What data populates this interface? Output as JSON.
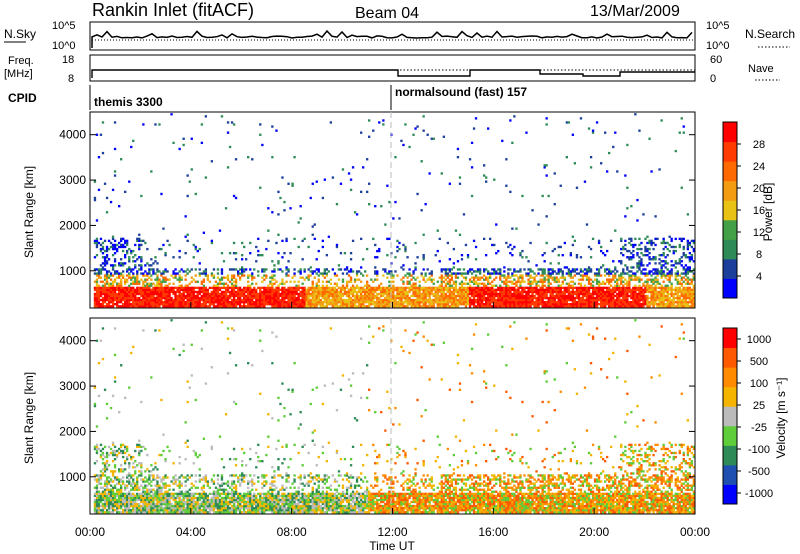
{
  "header": {
    "station": "Rankin Inlet (fitACF)",
    "beam": "Beam 04",
    "date": "13/Mar/2009"
  },
  "noise_panel": {
    "left_label": "N.Sky",
    "left_ticks": [
      "10^5",
      "10^0"
    ],
    "right_label": "N.Search",
    "right_ticks": [
      "10^5",
      "10^0"
    ]
  },
  "freq_panel": {
    "left_label_1": "Freq.",
    "left_label_2": "[MHz]",
    "left_ticks": [
      "18",
      "8"
    ],
    "right_label": "Nave",
    "right_ticks": [
      "60",
      "0"
    ]
  },
  "cpid_panel": {
    "label": "CPID",
    "segments": [
      {
        "name": "themis 3300",
        "start_hour": 0
      },
      {
        "name": "normalsound (fast) 157",
        "start_hour": 12
      }
    ]
  },
  "colors": {
    "power_scale": [
      "#0000ff",
      "#1c3f9c",
      "#2e8b57",
      "#43a047",
      "#e8c214",
      "#f39c12",
      "#ff6a00",
      "#ff3b00",
      "#ff0000"
    ],
    "velocity_scale": [
      "#ff0000",
      "#ff5a00",
      "#ff8c00",
      "#f4b400",
      "#bbbbbb",
      "#5fcc3a",
      "#2e8b57",
      "#1f4fb0",
      "#0000ff"
    ]
  },
  "chart_data": [
    {
      "type": "heatmap",
      "name": "power",
      "ylabel": "Slant Range [km]",
      "yticks": [
        "1000",
        "2000",
        "3000",
        "4000"
      ],
      "ylim": [
        180,
        4500
      ],
      "xlim": [
        0,
        24
      ],
      "colorbar_label": "Power [dB]",
      "colorbar_ticks": [
        "4",
        "8",
        "12",
        "16",
        "20",
        "24",
        "28"
      ],
      "colorbar_range": [
        0,
        32
      ]
    },
    {
      "type": "heatmap",
      "name": "velocity",
      "ylabel": "Slant Range [km]",
      "yticks": [
        "1000",
        "2000",
        "3000",
        "4000"
      ],
      "ylim": [
        180,
        4500
      ],
      "xlim": [
        0,
        24
      ],
      "xlabel": "Time UT",
      "xticks": [
        "00:00",
        "04:00",
        "08:00",
        "12:00",
        "16:00",
        "20:00",
        "00:00"
      ],
      "colorbar_label": "Velocity [m s⁻¹]",
      "colorbar_ticks": [
        "1000",
        "500",
        "100",
        "25",
        "-25",
        "-100",
        "-500",
        "-1000"
      ]
    }
  ]
}
